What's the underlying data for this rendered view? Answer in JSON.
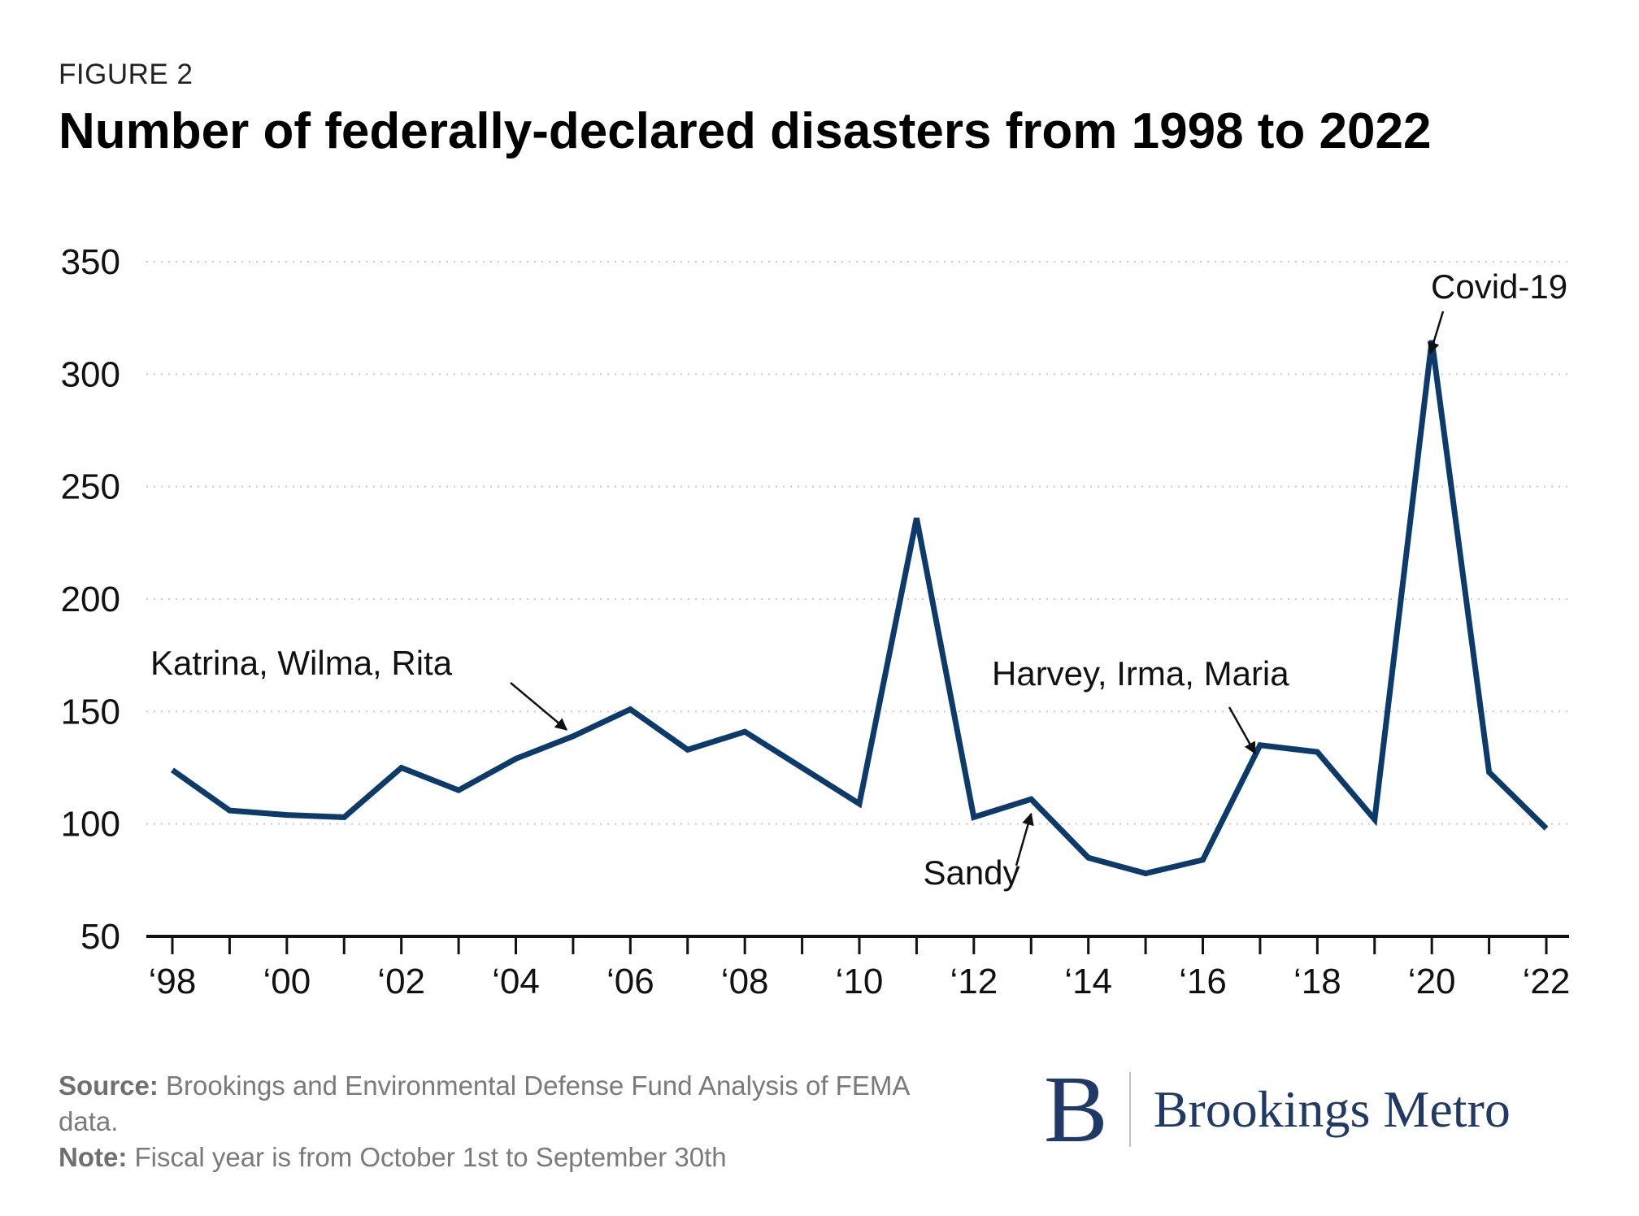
{
  "header": {
    "eyebrow": "FIGURE 2",
    "title": "Number of federally-declared disasters from 1998 to 2022"
  },
  "chart_data": {
    "type": "line",
    "title": "Number of federally-declared disasters from 1998 to 2022",
    "xlabel": "",
    "ylabel": "",
    "x": [
      1998,
      1999,
      2000,
      2001,
      2002,
      2003,
      2004,
      2005,
      2006,
      2007,
      2008,
      2009,
      2010,
      2011,
      2012,
      2013,
      2014,
      2015,
      2016,
      2017,
      2018,
      2019,
      2020,
      2021,
      2022
    ],
    "x_tick_values": [
      1998,
      2000,
      2002,
      2004,
      2006,
      2008,
      2010,
      2012,
      2014,
      2016,
      2018,
      2020,
      2022
    ],
    "x_tick_labels": [
      "‘98",
      "‘00",
      "‘02",
      "‘04",
      "‘06",
      "‘08",
      "‘10",
      "‘12",
      "‘14",
      "‘16",
      "‘18",
      "‘20",
      "‘22"
    ],
    "xlim": [
      1998,
      2022
    ],
    "ylim": [
      50,
      350
    ],
    "y_ticks": [
      50,
      100,
      150,
      200,
      250,
      300,
      350
    ],
    "grid": "horizontal dotted",
    "series": [
      {
        "color": "#0b3a6b",
        "values": [
          124,
          106,
          104,
          103,
          125,
          115,
          129,
          139,
          151,
          133,
          141,
          125,
          109,
          236,
          103,
          111,
          85,
          78,
          84,
          135,
          132,
          102,
          315,
          123,
          98
        ]
      }
    ],
    "annotations": [
      {
        "text": "Katrina, Wilma, Rita",
        "x": 2005
      },
      {
        "text": "Sandy",
        "x": 2013
      },
      {
        "text": "Harvey, Irma, Maria",
        "x": 2017
      },
      {
        "text": "Covid-19",
        "x": 2020
      }
    ]
  },
  "footer": {
    "source_label": "Source:",
    "source_text": "Brookings and Environmental Defense Fund Analysis of FEMA data.",
    "note_label": "Note:",
    "note_text": "Fiscal year is from October 1st to September 30th"
  },
  "logo": {
    "mark": "B",
    "name": "Brookings Metro",
    "color": "#1f3a66"
  }
}
